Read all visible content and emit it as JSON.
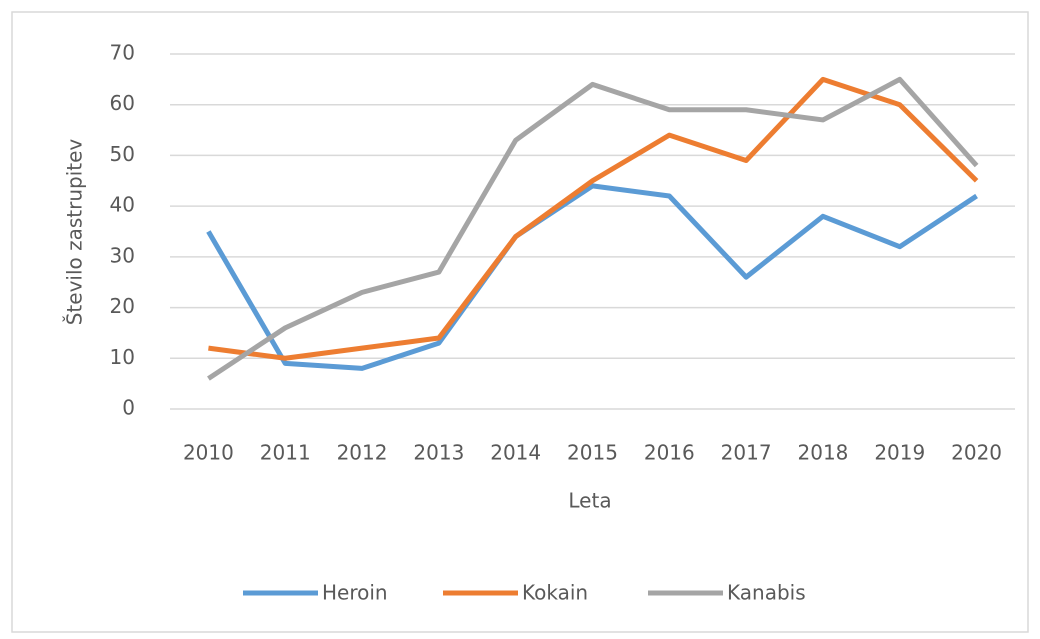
{
  "chart_data": {
    "type": "line",
    "categories": [
      "2010",
      "2011",
      "2012",
      "2013",
      "2014",
      "2015",
      "2016",
      "2017",
      "2018",
      "2019",
      "2020"
    ],
    "series": [
      {
        "name": "Heroin",
        "color": "#5b9bd5",
        "values": [
          35,
          9,
          8,
          13,
          34,
          44,
          42,
          26,
          38,
          32,
          42
        ]
      },
      {
        "name": "Kokain",
        "color": "#ed7d31",
        "values": [
          12,
          10,
          12,
          14,
          34,
          45,
          54,
          49,
          65,
          60,
          45
        ]
      },
      {
        "name": "Kanabis",
        "color": "#a5a5a5",
        "values": [
          6,
          16,
          23,
          27,
          53,
          64,
          59,
          59,
          57,
          65,
          48
        ]
      }
    ],
    "ylim": [
      0,
      70
    ],
    "yticks": [
      0,
      10,
      20,
      30,
      40,
      50,
      60,
      70
    ],
    "grid": true,
    "ylabel": "Število zastrupitev",
    "xlabel": "Leta",
    "legend": "bottom"
  }
}
